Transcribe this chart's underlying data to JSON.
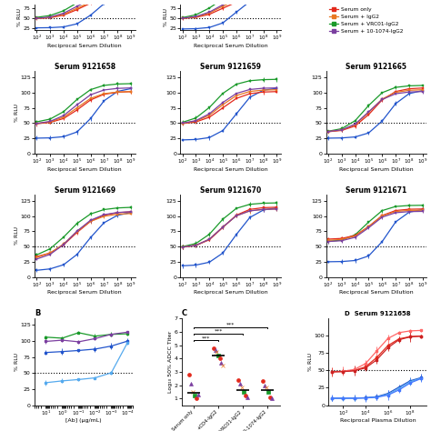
{
  "row2_titles": [
    "Serum 9121658",
    "Serum 9121659",
    "Serum 9121665"
  ],
  "row3_titles": [
    "Serum 9121669",
    "Serum 9121670",
    "Serum 9121671"
  ],
  "panel_D_serum": "Serum 9121658",
  "xlabel_serum": "Reciprocal Serum Dilution",
  "xlabel_plasma": "Reciprocal Plasma Dilution",
  "ylabel_RLU": "% RLU",
  "ylabel_ADCC": "Log₁₀ 50% ADCC Titer",
  "xlabel_B": "[Ab] (μg/mL)",
  "colors": {
    "red": "#e3291c",
    "orange": "#e87722",
    "green": "#1a9a2a",
    "purple": "#7b3fa0",
    "blue": "#2255cc",
    "light_blue": "#55aaee",
    "dark_red": "#aa0000",
    "pink_red": "#ee4444"
  },
  "bg_color": "#ffffff"
}
